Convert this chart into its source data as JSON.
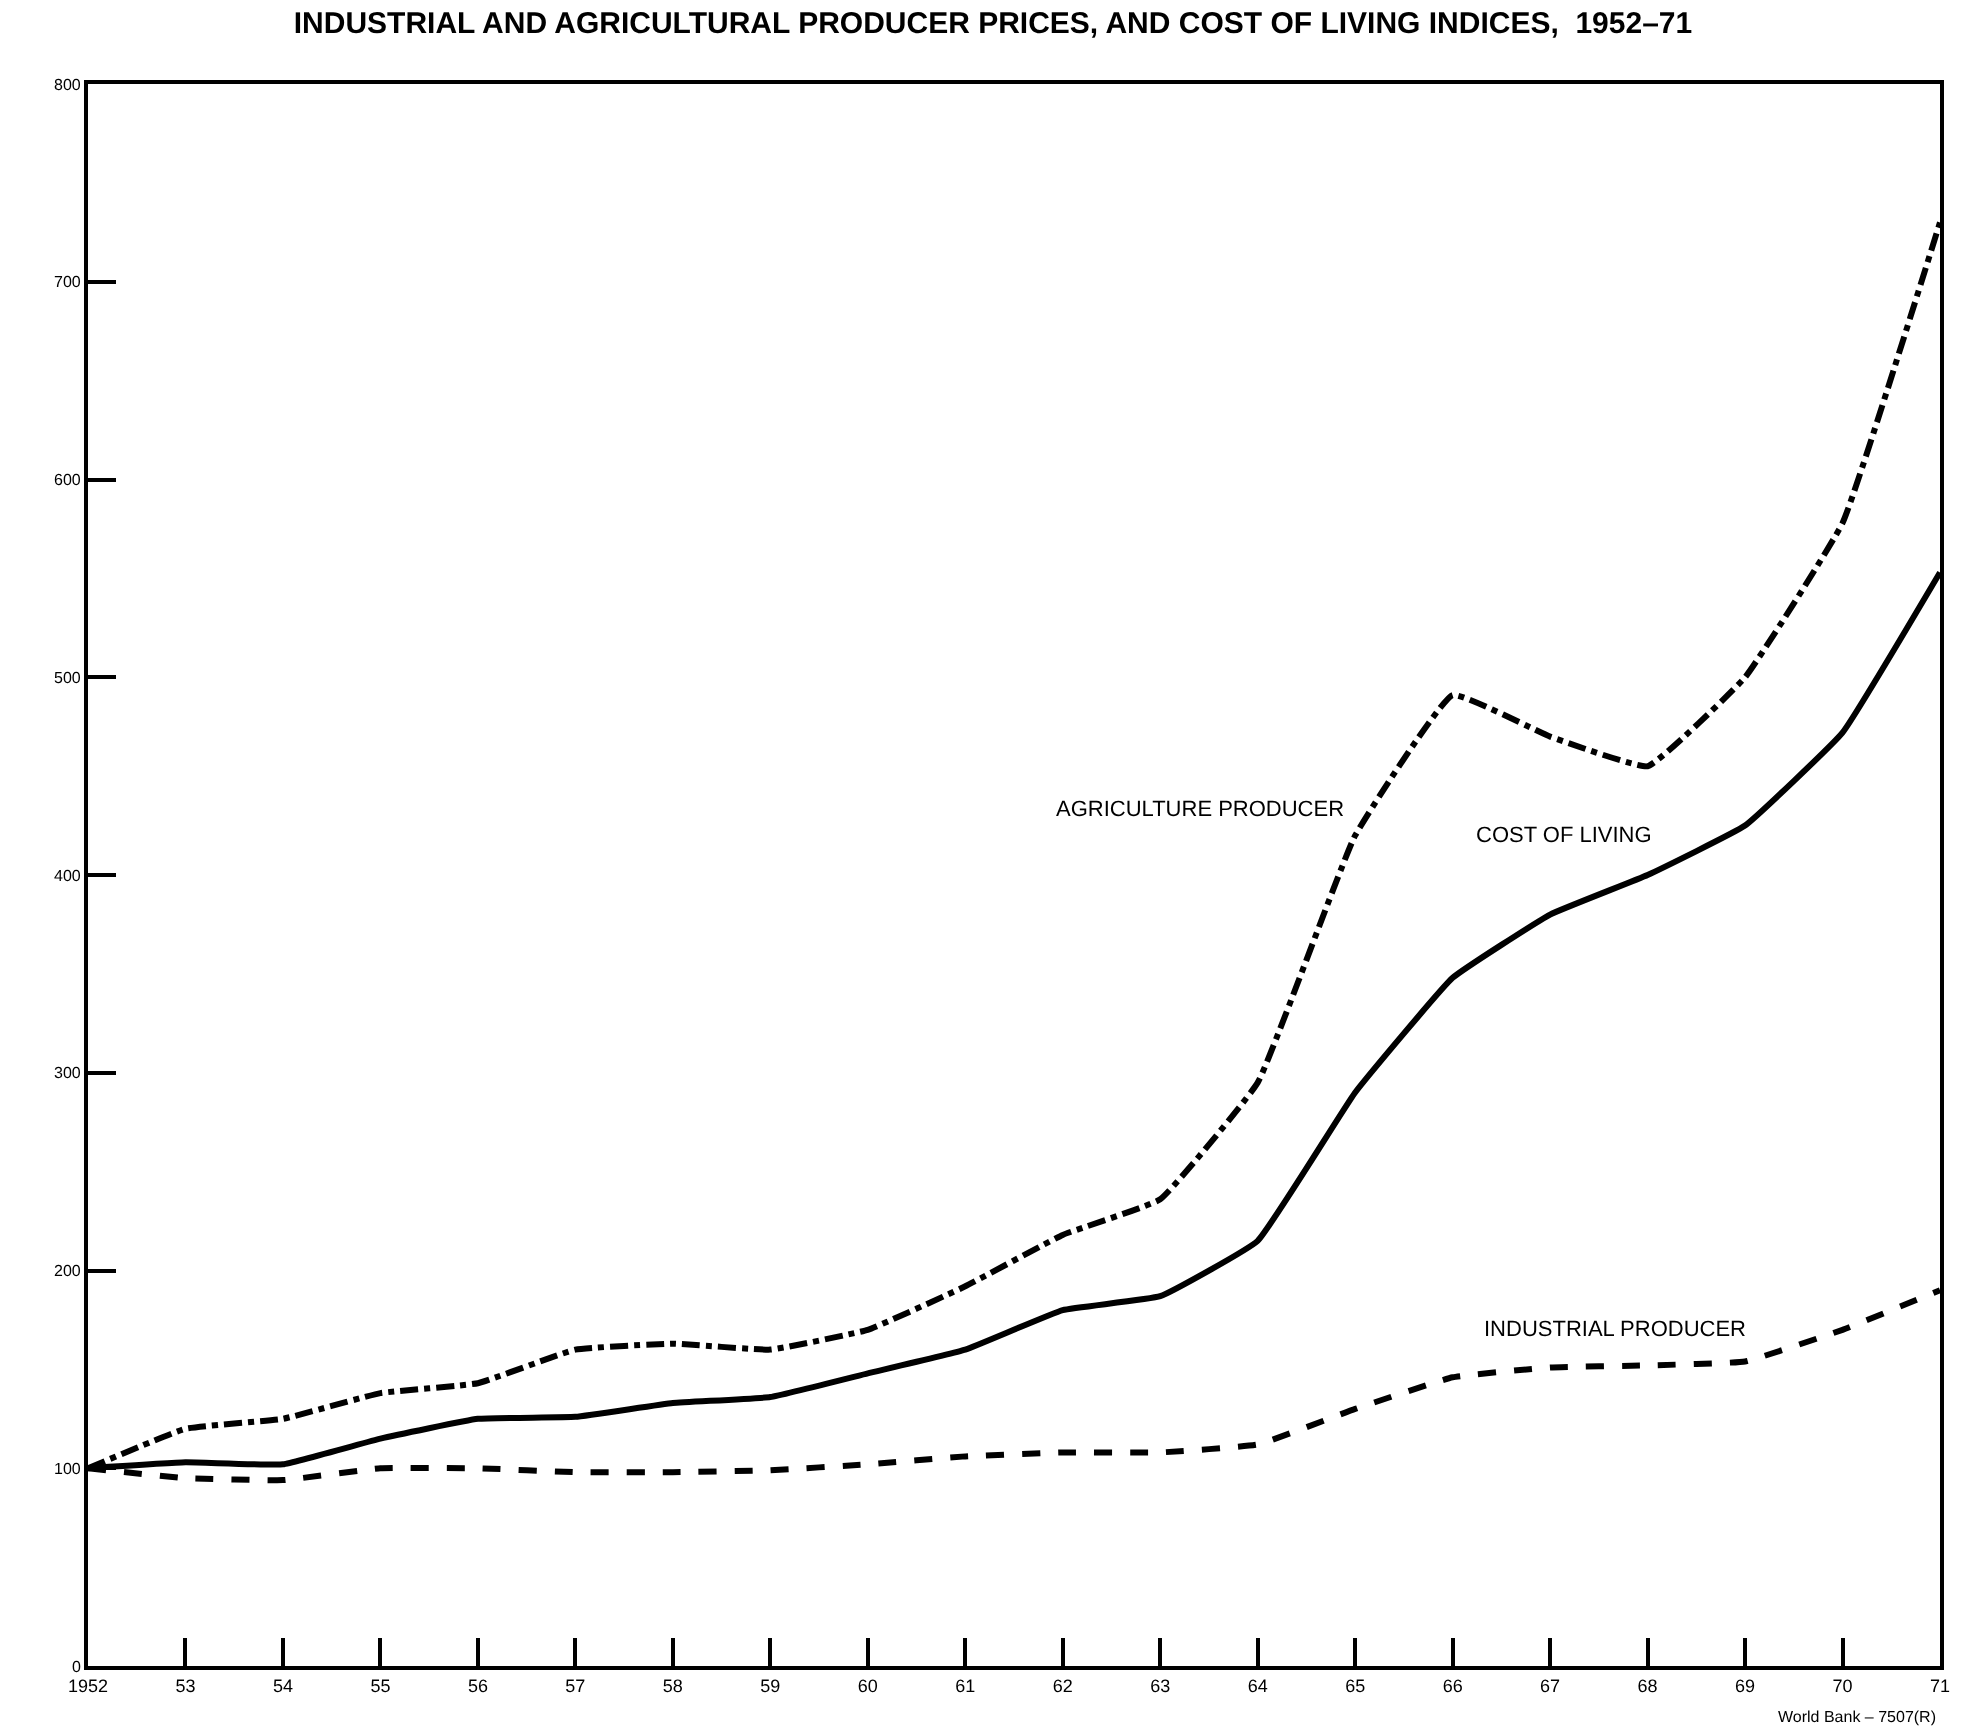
{
  "chart_data": {
    "type": "line",
    "title": "INDUSTRIAL AND AGRICULTURAL PRODUCER PRICES, AND COST OF LIVING INDICES,  1952–71",
    "x": [
      1952,
      1953,
      1954,
      1955,
      1956,
      1957,
      1958,
      1959,
      1960,
      1961,
      1962,
      1963,
      1964,
      1965,
      1966,
      1967,
      1968,
      1969,
      1970,
      1971
    ],
    "series": [
      {
        "name": "AGRICULTURE PRODUCER",
        "color": "#000000",
        "line_style": "dashdot",
        "values": [
          100,
          120,
          125,
          138,
          143,
          160,
          163,
          160,
          170,
          192,
          218,
          236,
          295,
          420,
          491,
          470,
          455,
          500,
          578,
          730
        ]
      },
      {
        "name": "COST OF LIVING",
        "color": "#000000",
        "line_style": "solid",
        "values": [
          100,
          103,
          102,
          115,
          125,
          126,
          133,
          136,
          148,
          160,
          180,
          187,
          215,
          290,
          348,
          380,
          400,
          425,
          472,
          553
        ]
      },
      {
        "name": "INDUSTRIAL PRODUCER",
        "color": "#000000",
        "line_style": "dashed",
        "values": [
          100,
          95,
          94,
          100,
          100,
          98,
          98,
          99,
          102,
          106,
          108,
          108,
          112,
          130,
          146,
          151,
          152,
          154,
          170,
          190
        ]
      }
    ],
    "xlim": [
      1952,
      1971
    ],
    "xticks": [
      1952,
      {
        "value": 1953,
        "label": "53"
      },
      {
        "value": 1954,
        "label": "54"
      },
      {
        "value": 1955,
        "label": "55"
      },
      {
        "value": 1956,
        "label": "56"
      },
      {
        "value": 1957,
        "label": "57"
      },
      {
        "value": 1958,
        "label": "58"
      },
      {
        "value": 1959,
        "label": "59"
      },
      {
        "value": 1960,
        "label": "60"
      },
      {
        "value": 1961,
        "label": "61"
      },
      {
        "value": 1962,
        "label": "62"
      },
      {
        "value": 1963,
        "label": "63"
      },
      {
        "value": 1964,
        "label": "64"
      },
      {
        "value": 1965,
        "label": "65"
      },
      {
        "value": 1966,
        "label": "66"
      },
      {
        "value": 1967,
        "label": "67"
      },
      {
        "value": 1968,
        "label": "68"
      },
      {
        "value": 1969,
        "label": "69"
      },
      {
        "value": 1970,
        "label": "70"
      },
      {
        "value": 1971,
        "label": "71"
      }
    ],
    "ylim": [
      0,
      800
    ],
    "yticks": [
      0,
      100,
      200,
      300,
      400,
      500,
      600,
      700,
      800
    ],
    "grid": false,
    "legend": false,
    "marker": "none",
    "annotations": [
      "World Bank – 7507(R)"
    ]
  }
}
